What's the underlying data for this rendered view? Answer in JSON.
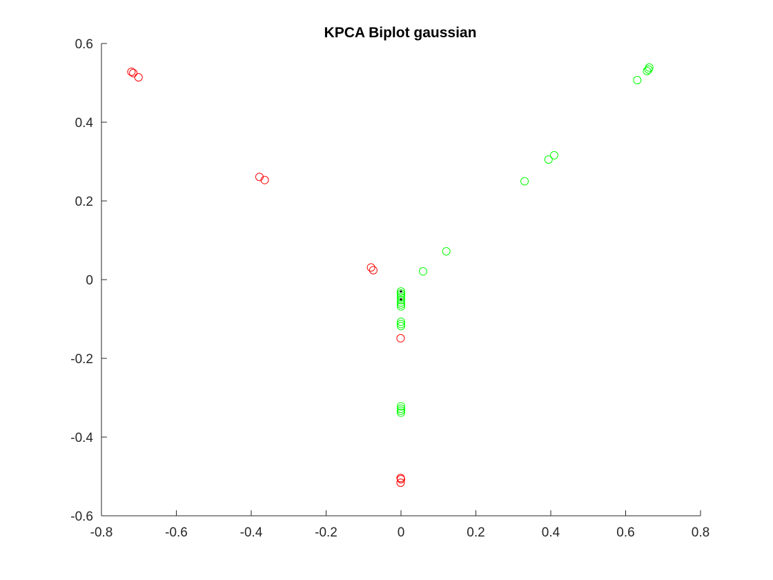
{
  "chart_data": {
    "type": "scatter",
    "title": "KPCA Biplot gaussian",
    "xlabel": "",
    "ylabel": "",
    "xlim": [
      -0.8,
      0.8
    ],
    "ylim": [
      -0.6,
      0.6
    ],
    "xticks": [
      -0.8,
      -0.6,
      -0.4,
      -0.2,
      0,
      0.2,
      0.4,
      0.6,
      0.8
    ],
    "yticks": [
      -0.6,
      -0.4,
      -0.2,
      0,
      0.2,
      0.4,
      0.6
    ],
    "xtick_labels": [
      "-0.8",
      "-0.6",
      "-0.4",
      "-0.2",
      "0",
      "0.2",
      "0.4",
      "0.6",
      "0.8"
    ],
    "ytick_labels": [
      "-0.6",
      "-0.4",
      "-0.2",
      "0",
      "0.2",
      "0.4",
      "0.6"
    ],
    "grid": false,
    "box": false,
    "series": [
      {
        "color": "#ff0000",
        "marker": "circle-open",
        "points": [
          [
            -0.72,
            0.528
          ],
          [
            -0.715,
            0.525
          ],
          [
            -0.701,
            0.514
          ],
          [
            -0.378,
            0.261
          ],
          [
            -0.364,
            0.253
          ],
          [
            -0.08,
            0.031
          ],
          [
            -0.074,
            0.024
          ],
          [
            -0.001,
            -0.149
          ],
          [
            -0.001,
            -0.504
          ],
          [
            0.0,
            -0.507
          ],
          [
            -0.001,
            -0.516
          ]
        ]
      },
      {
        "color": "#00ff00",
        "marker": "circle-open",
        "points": [
          [
            0.663,
            0.539
          ],
          [
            0.661,
            0.534
          ],
          [
            0.657,
            0.53
          ],
          [
            0.631,
            0.507
          ],
          [
            0.409,
            0.316
          ],
          [
            0.394,
            0.305
          ],
          [
            0.33,
            0.25
          ],
          [
            0.121,
            0.072
          ],
          [
            0.059,
            0.021
          ],
          [
            0.0,
            -0.03
          ],
          [
            0.0,
            -0.035
          ],
          [
            0.0,
            -0.04
          ],
          [
            0.0,
            -0.045
          ],
          [
            0.0,
            -0.052
          ],
          [
            0.0,
            -0.058
          ],
          [
            0.0,
            -0.063
          ],
          [
            0.0,
            -0.068
          ],
          [
            0.0,
            -0.107
          ],
          [
            0.0,
            -0.113
          ],
          [
            0.0,
            -0.118
          ],
          [
            0.0,
            -0.322
          ],
          [
            0.0,
            -0.328
          ],
          [
            0.0,
            -0.333
          ],
          [
            0.0,
            -0.338
          ]
        ]
      },
      {
        "color": "#000000",
        "marker": "dot",
        "points": [
          [
            0.0,
            -0.03
          ],
          [
            0.0,
            -0.05
          ]
        ]
      }
    ]
  }
}
